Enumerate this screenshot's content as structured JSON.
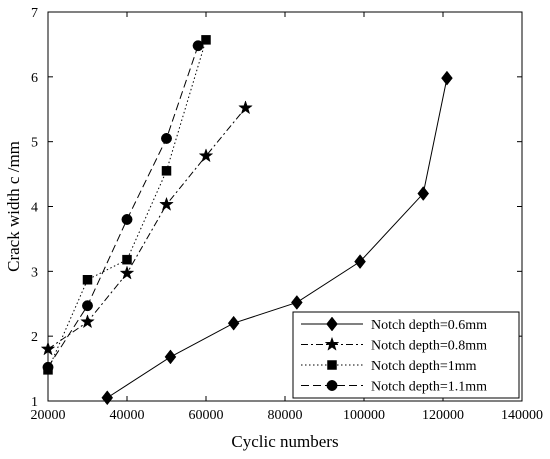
{
  "chart_data": {
    "type": "line",
    "title": "",
    "xlabel": "Cyclic numbers",
    "ylabel": "Crack width c /mm",
    "xlim": [
      20000,
      140000
    ],
    "ylim": [
      1,
      7
    ],
    "xticks": [
      20000,
      40000,
      60000,
      80000,
      100000,
      120000,
      140000
    ],
    "yticks": [
      1,
      2,
      3,
      4,
      5,
      6,
      7
    ],
    "xtick_labels": [
      "20000",
      "40000",
      "60000",
      "80000",
      "100000",
      "120000",
      "140000"
    ],
    "ytick_labels": [
      "1",
      "2",
      "3",
      "4",
      "5",
      "6",
      "7"
    ],
    "grid": false,
    "legend_position": "bottom-right",
    "series": [
      {
        "name": "Notch depth=0.6mm",
        "marker": "diamond",
        "dash": "solid",
        "x": [
          35000,
          51000,
          67000,
          83000,
          99000,
          115000,
          121000
        ],
        "y": [
          1.05,
          1.68,
          2.2,
          2.52,
          3.15,
          4.2,
          5.98
        ]
      },
      {
        "name": "Notch depth=0.8mm",
        "marker": "star",
        "dash": "dashdot",
        "x": [
          20000,
          30000,
          40000,
          50000,
          60000,
          70000
        ],
        "y": [
          1.8,
          2.22,
          2.97,
          4.03,
          4.78,
          5.52
        ]
      },
      {
        "name": "Notch depth=1mm",
        "marker": "square",
        "dash": "dotted",
        "x": [
          20000,
          30000,
          40000,
          50000,
          60000
        ],
        "y": [
          1.48,
          2.87,
          3.18,
          4.55,
          6.57
        ]
      },
      {
        "name": "Notch depth=1.1mm",
        "marker": "circle",
        "dash": "dashed",
        "x": [
          20000,
          30000,
          40000,
          50000,
          58000
        ],
        "y": [
          1.52,
          2.47,
          3.8,
          5.05,
          6.48
        ]
      }
    ]
  }
}
